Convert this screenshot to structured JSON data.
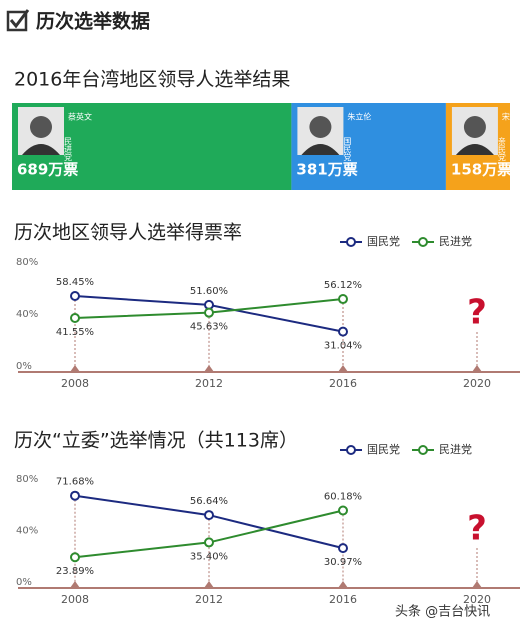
{
  "page_title": "历次选举数据",
  "footer": "头条 @吉台快讯",
  "chart_data": [
    {
      "type": "bar",
      "title": "2016年台湾地区领导人选举结果",
      "series": [
        {
          "name": "蔡英文",
          "party": "民进党",
          "color": "#1faa59",
          "values": [
            689
          ],
          "value_labels": [
            "689万票"
          ]
        },
        {
          "name": "朱立伦",
          "party": "国民党",
          "color": "#2f8fe0",
          "values": [
            381
          ],
          "value_labels": [
            "381万票"
          ]
        },
        {
          "name": "宋楚瑜",
          "party": "亲民党",
          "color": "#f5a21b",
          "values": [
            158
          ],
          "value_labels": [
            "158万票"
          ]
        }
      ]
    },
    {
      "type": "line",
      "title": "历次地区领导人选举得票率",
      "categories": [
        "2008",
        "2012",
        "2016",
        "2020"
      ],
      "ylim": [
        0,
        80
      ],
      "yticks": [
        {
          "value": 0,
          "label": "0%"
        },
        {
          "value": 40,
          "label": "40%"
        },
        {
          "value": 80,
          "label": "80%"
        }
      ],
      "annotation": "?",
      "series": [
        {
          "name": "国民党",
          "color": "#1c2a80",
          "values": [
            58.45,
            51.6,
            31.04,
            null
          ],
          "value_labels": [
            "58.45%",
            "51.60%",
            "31.04%",
            null
          ]
        },
        {
          "name": "民进党",
          "color": "#2e8b2e",
          "values": [
            41.55,
            45.63,
            56.12,
            null
          ],
          "value_labels": [
            "41.55%",
            "45.63%",
            "56.12%",
            null
          ]
        }
      ]
    },
    {
      "type": "line",
      "title": "历次“立委”选举情况（共113席）",
      "categories": [
        "2008",
        "2012",
        "2016",
        "2020"
      ],
      "ylim": [
        0,
        80
      ],
      "yticks": [
        {
          "value": 0,
          "label": "0%"
        },
        {
          "value": 40,
          "label": "40%"
        },
        {
          "value": 80,
          "label": "80%"
        }
      ],
      "annotation": "?",
      "series": [
        {
          "name": "国民党",
          "color": "#1c2a80",
          "values": [
            71.68,
            56.64,
            30.97,
            null
          ],
          "value_labels": [
            "71.68%",
            "56.64%",
            "30.97%",
            null
          ]
        },
        {
          "name": "民进党",
          "color": "#2e8b2e",
          "values": [
            23.89,
            35.4,
            60.18,
            null
          ],
          "value_labels": [
            "23.89%",
            "35.40%",
            "60.18%",
            null
          ]
        }
      ]
    }
  ]
}
